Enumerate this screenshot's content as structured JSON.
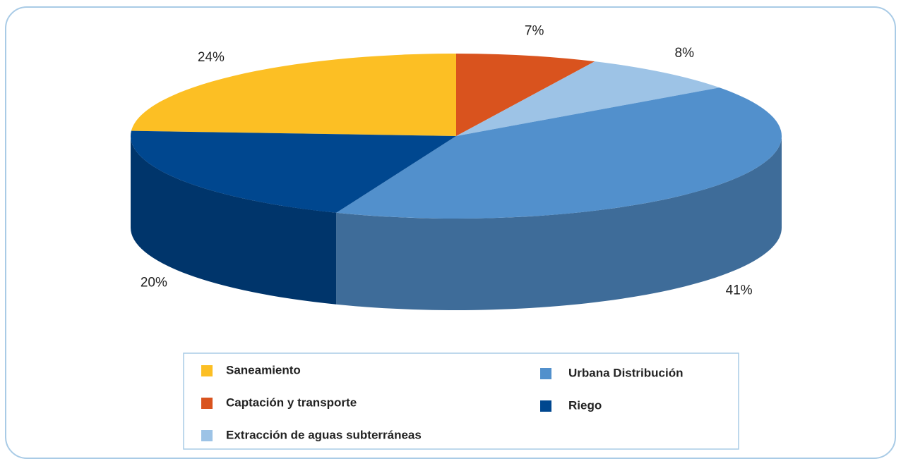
{
  "chart_data": {
    "type": "pie",
    "three_d": true,
    "categories": [
      "Saneamiento",
      "Captación y transporte",
      "Extracción de aguas subterráneas",
      "Urbana Distribución",
      "Riego"
    ],
    "values": [
      24,
      7,
      8,
      41,
      20
    ],
    "value_labels": [
      "24%",
      "7%",
      "8%",
      "41%",
      "20%"
    ],
    "colors": [
      "#fcbf24",
      "#d9531e",
      "#9dc3e6",
      "#5290cc",
      "#00478f"
    ],
    "legend": "bottom"
  }
}
